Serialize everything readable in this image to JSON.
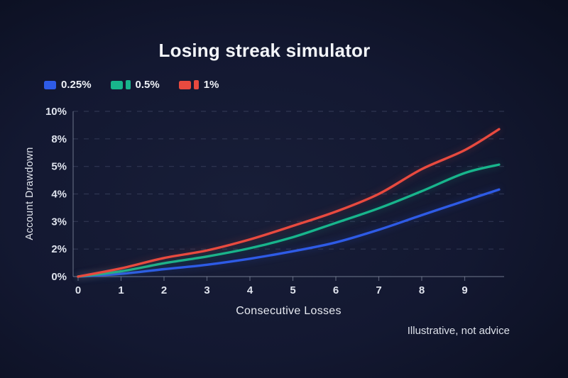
{
  "title": "Losing streak simulator",
  "footer_note": "Illustrative, not advice",
  "colors": {
    "background_center": "#181e38",
    "background_edge": "#04060e",
    "grid": "#4a5270",
    "axis": "#9099ad",
    "tick_text": "#dfe3ed",
    "title_text": "#f3f5f9",
    "series_blue": "#2e5be6",
    "series_green": "#18b58c",
    "series_red": "#e84a3f"
  },
  "legend": {
    "items": [
      {
        "label": "0.25%",
        "color": "#2e5be6",
        "double_swatch": false
      },
      {
        "label": "0.5%",
        "color": "#18b58c",
        "double_swatch": true
      },
      {
        "label": "1%",
        "color": "#e84a3f",
        "double_swatch": true
      }
    ]
  },
  "chart_data": {
    "type": "line",
    "title": "Losing streak simulator",
    "xlabel": "Consecutive Losses",
    "ylabel": "Account Drawdown",
    "x_ticks": [
      0,
      1,
      2,
      3,
      4,
      5,
      6,
      7,
      8,
      9
    ],
    "xlim": [
      0,
      9.9
    ],
    "y_tick_labels": [
      "0%",
      "2%",
      "3%",
      "4%",
      "5%",
      "8%",
      "10%"
    ],
    "y_tick_values": [
      0,
      2,
      3,
      4,
      5,
      8,
      10
    ],
    "grid": "dashed horizontal gridlines",
    "legend_position": "top-left",
    "series": [
      {
        "name": "0.25%",
        "color": "#2e5be6",
        "points": [
          [
            0,
            0
          ],
          [
            1,
            0.2
          ],
          [
            2,
            0.54
          ],
          [
            3,
            0.86
          ],
          [
            4,
            1.3
          ],
          [
            5,
            1.84
          ],
          [
            6,
            2.24
          ],
          [
            7,
            2.7
          ],
          [
            8,
            3.23
          ],
          [
            9,
            3.75
          ],
          [
            9.8,
            4.16
          ]
        ]
      },
      {
        "name": "0.5%",
        "color": "#18b58c",
        "points": [
          [
            0,
            0
          ],
          [
            1,
            0.38
          ],
          [
            2,
            0.97
          ],
          [
            3,
            1.46
          ],
          [
            4,
            2.03
          ],
          [
            5,
            2.43
          ],
          [
            6,
            2.95
          ],
          [
            7,
            3.48
          ],
          [
            8,
            4.1
          ],
          [
            9,
            4.76
          ],
          [
            9.8,
            5.2
          ]
        ]
      },
      {
        "name": "1%",
        "color": "#e84a3f",
        "points": [
          [
            0,
            0
          ],
          [
            1,
            0.6
          ],
          [
            2,
            1.35
          ],
          [
            3,
            1.9
          ],
          [
            4,
            2.35
          ],
          [
            5,
            2.84
          ],
          [
            6,
            3.36
          ],
          [
            7,
            4.0
          ],
          [
            8,
            4.9
          ],
          [
            9,
            6.77
          ],
          [
            9.8,
            8.7
          ]
        ]
      }
    ]
  }
}
